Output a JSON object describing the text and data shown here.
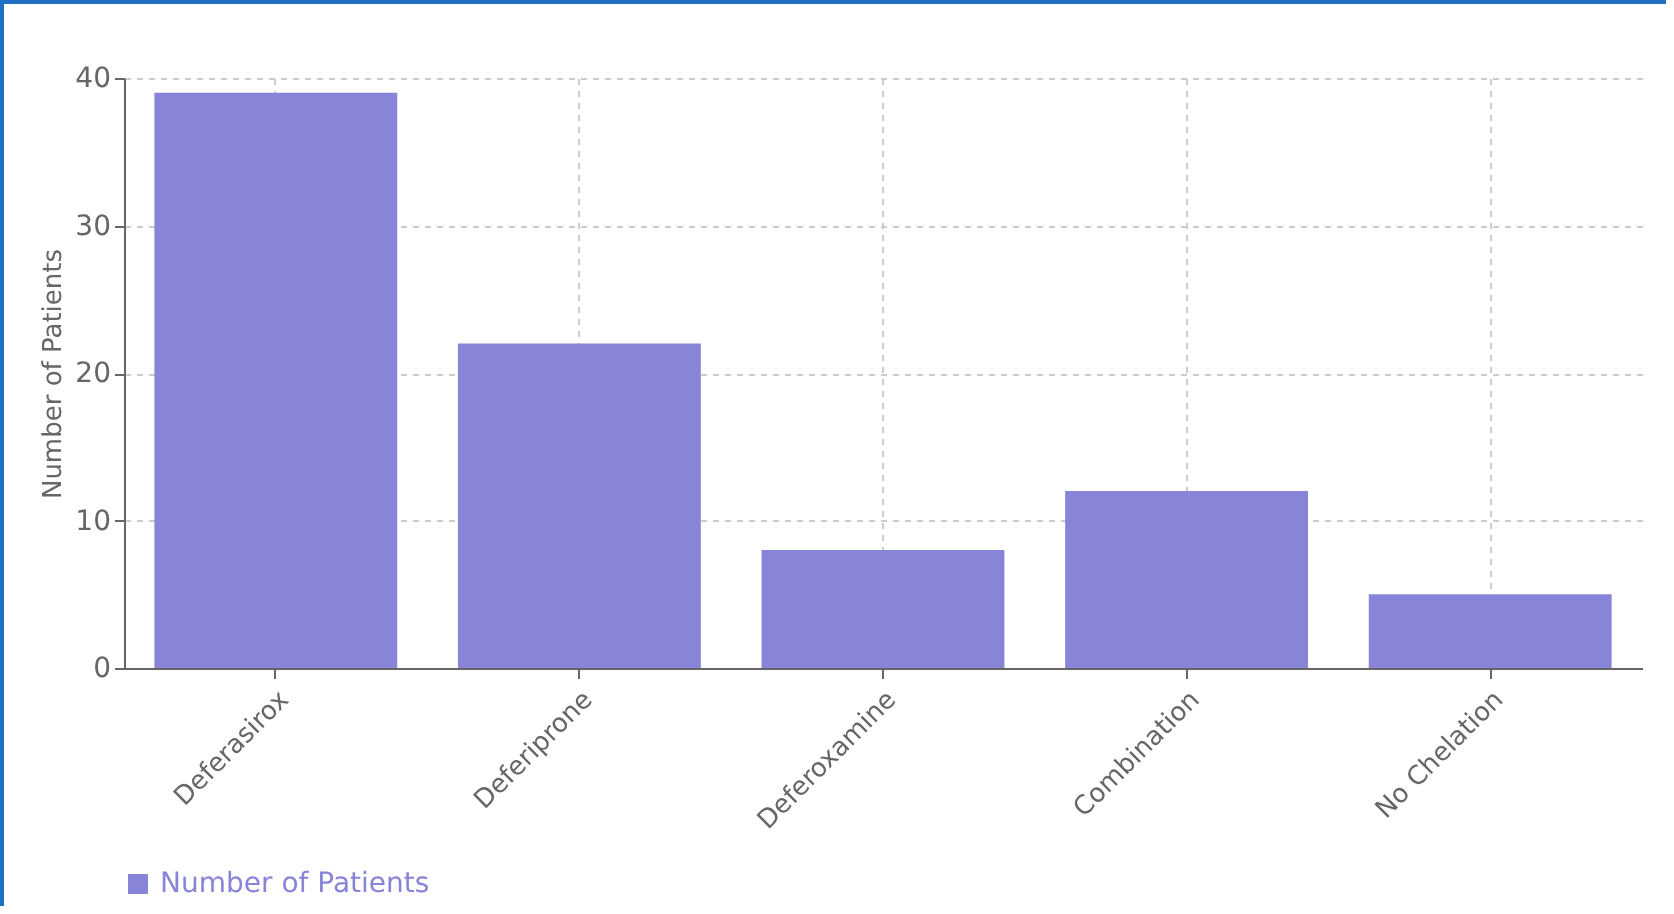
{
  "chart_data": {
    "type": "bar",
    "ylabel": "Number of Patients",
    "categories": [
      "Deferasirox",
      "Deferiprone",
      "Deferoxamine",
      "Combination",
      "No Chelation"
    ],
    "series": [
      {
        "name": "Number of Patients",
        "color": "#8884d8",
        "values": [
          39,
          22,
          8,
          12,
          5
        ]
      }
    ],
    "ylim": [
      0,
      40
    ],
    "yticks": [
      0,
      10,
      20,
      30,
      40
    ],
    "grid": true,
    "legend": "bottom"
  }
}
